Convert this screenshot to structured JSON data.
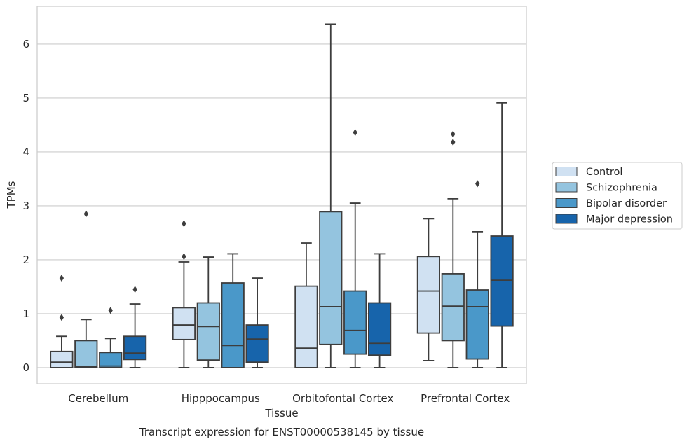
{
  "chart_data": {
    "type": "box",
    "caption": "Transcript expression for ENST00000538145 by tissue",
    "xlabel": "Tissue",
    "ylabel": "TPMs",
    "ylim": [
      -0.3,
      6.7
    ],
    "yticks": [
      0,
      1,
      2,
      3,
      4,
      5,
      6
    ],
    "grid": "horizontal",
    "legend_position": "outside-right",
    "categories": [
      "Cerebellum",
      "Hipppocampus",
      "Orbitofontal Cortex",
      "Prefrontal Cortex"
    ],
    "series": [
      {
        "name": "Control",
        "color": "#d0e1f2",
        "boxes": [
          {
            "whislo": 0,
            "q1": 0,
            "med": 0.1,
            "q3": 0.3,
            "whishi": 0.58,
            "fliers": [
              0.93,
              1.66
            ]
          },
          {
            "whislo": 0,
            "q1": 0.52,
            "med": 0.79,
            "q3": 1.11,
            "whishi": 1.96,
            "fliers": [
              2.06,
              2.67
            ]
          },
          {
            "whislo": 0,
            "q1": 0,
            "med": 0.36,
            "q3": 1.51,
            "whishi": 2.31,
            "fliers": []
          },
          {
            "whislo": 0.13,
            "q1": 0.64,
            "med": 1.42,
            "q3": 2.06,
            "whishi": 2.76,
            "fliers": []
          }
        ]
      },
      {
        "name": "Schizophrenia",
        "color": "#94c4df",
        "boxes": [
          {
            "whislo": 0,
            "q1": 0,
            "med": 0.02,
            "q3": 0.5,
            "whishi": 0.89,
            "fliers": [
              2.85
            ]
          },
          {
            "whislo": 0,
            "q1": 0.14,
            "med": 0.76,
            "q3": 1.2,
            "whishi": 2.05,
            "fliers": []
          },
          {
            "whislo": 0,
            "q1": 0.43,
            "med": 1.13,
            "q3": 2.89,
            "whishi": 6.37,
            "fliers": []
          },
          {
            "whislo": 0,
            "q1": 0.5,
            "med": 1.14,
            "q3": 1.74,
            "whishi": 3.13,
            "fliers": [
              4.18,
              4.33
            ]
          }
        ]
      },
      {
        "name": "Bipolar disorder",
        "color": "#4a98c9",
        "boxes": [
          {
            "whislo": 0,
            "q1": 0,
            "med": 0.03,
            "q3": 0.28,
            "whishi": 0.54,
            "fliers": [
              1.06
            ]
          },
          {
            "whislo": 0,
            "q1": 0,
            "med": 0.41,
            "q3": 1.57,
            "whishi": 2.11,
            "fliers": []
          },
          {
            "whislo": 0,
            "q1": 0.25,
            "med": 0.69,
            "q3": 1.42,
            "whishi": 3.05,
            "fliers": [
              4.36
            ]
          },
          {
            "whislo": 0,
            "q1": 0.16,
            "med": 1.13,
            "q3": 1.44,
            "whishi": 2.52,
            "fliers": [
              3.41
            ]
          }
        ]
      },
      {
        "name": "Major depression",
        "color": "#1764ab",
        "boxes": [
          {
            "whislo": 0,
            "q1": 0.15,
            "med": 0.27,
            "q3": 0.58,
            "whishi": 1.18,
            "fliers": [
              1.45
            ]
          },
          {
            "whislo": 0,
            "q1": 0.1,
            "med": 0.53,
            "q3": 0.79,
            "whishi": 1.66,
            "fliers": []
          },
          {
            "whislo": 0,
            "q1": 0.23,
            "med": 0.45,
            "q3": 1.2,
            "whishi": 2.11,
            "fliers": []
          },
          {
            "whislo": 0,
            "q1": 0.77,
            "med": 1.62,
            "q3": 2.44,
            "whishi": 4.91,
            "fliers": []
          }
        ]
      }
    ]
  }
}
